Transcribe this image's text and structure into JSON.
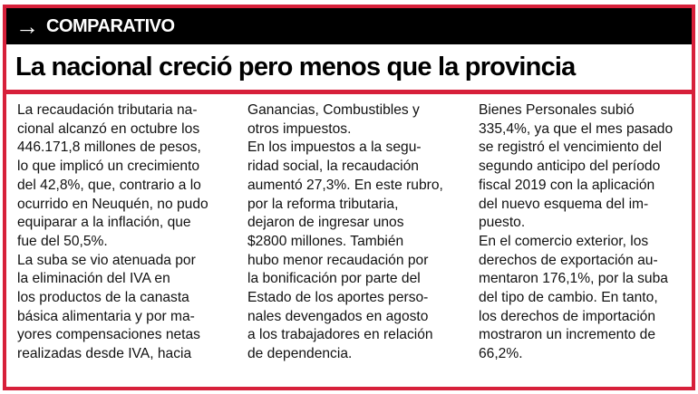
{
  "kicker": {
    "icon": "arrow-right-icon",
    "label": "COMPARATIVO"
  },
  "headline": "La nacional creció pero menos que la provincia",
  "columns": [
    [
      "La recaudación tributaria na-",
      "cional alcanzó en octubre los",
      "446.171,8 millones de pesos,",
      "lo que implicó un crecimiento",
      "del 42,8%, que, contrario a lo",
      "ocurrido en Neuquén, no pudo",
      "equiparar a la inflación, que",
      "fue del 50,5%.",
      "La suba se vio atenuada por",
      "la eliminación del IVA en",
      "los productos de la canasta",
      "básica alimentaria y por ma-",
      "yores compensaciones netas",
      "realizadas desde IVA, hacia"
    ],
    [
      "Ganancias, Combustibles y",
      "otros impuestos.",
      "En los impuestos a la segu-",
      "ridad social, la recaudación",
      "aumentó 27,3%. En este rubro,",
      "por la reforma tributaria,",
      "dejaron de ingresar unos",
      "$2800 millones. También",
      "hubo menor recaudación por",
      "la bonificación por parte del",
      "Estado de los aportes perso-",
      "nales devengados en agosto",
      "a los trabajadores en relación",
      "de dependencia."
    ],
    [
      "Bienes Personales subió",
      "335,4%, ya que el mes pasado",
      "se registró el vencimiento del",
      "segundo anticipo del período",
      "fiscal 2019 con la aplicación",
      "del nuevo esquema del im-",
      "puesto.",
      "En el comercio exterior, los",
      "derechos de exportación au-",
      "mentaron 176,1%, por la suba",
      "del tipo de cambio. En tanto,",
      "los derechos de importación",
      "mostraron un incremento de",
      "66,2%."
    ]
  ]
}
